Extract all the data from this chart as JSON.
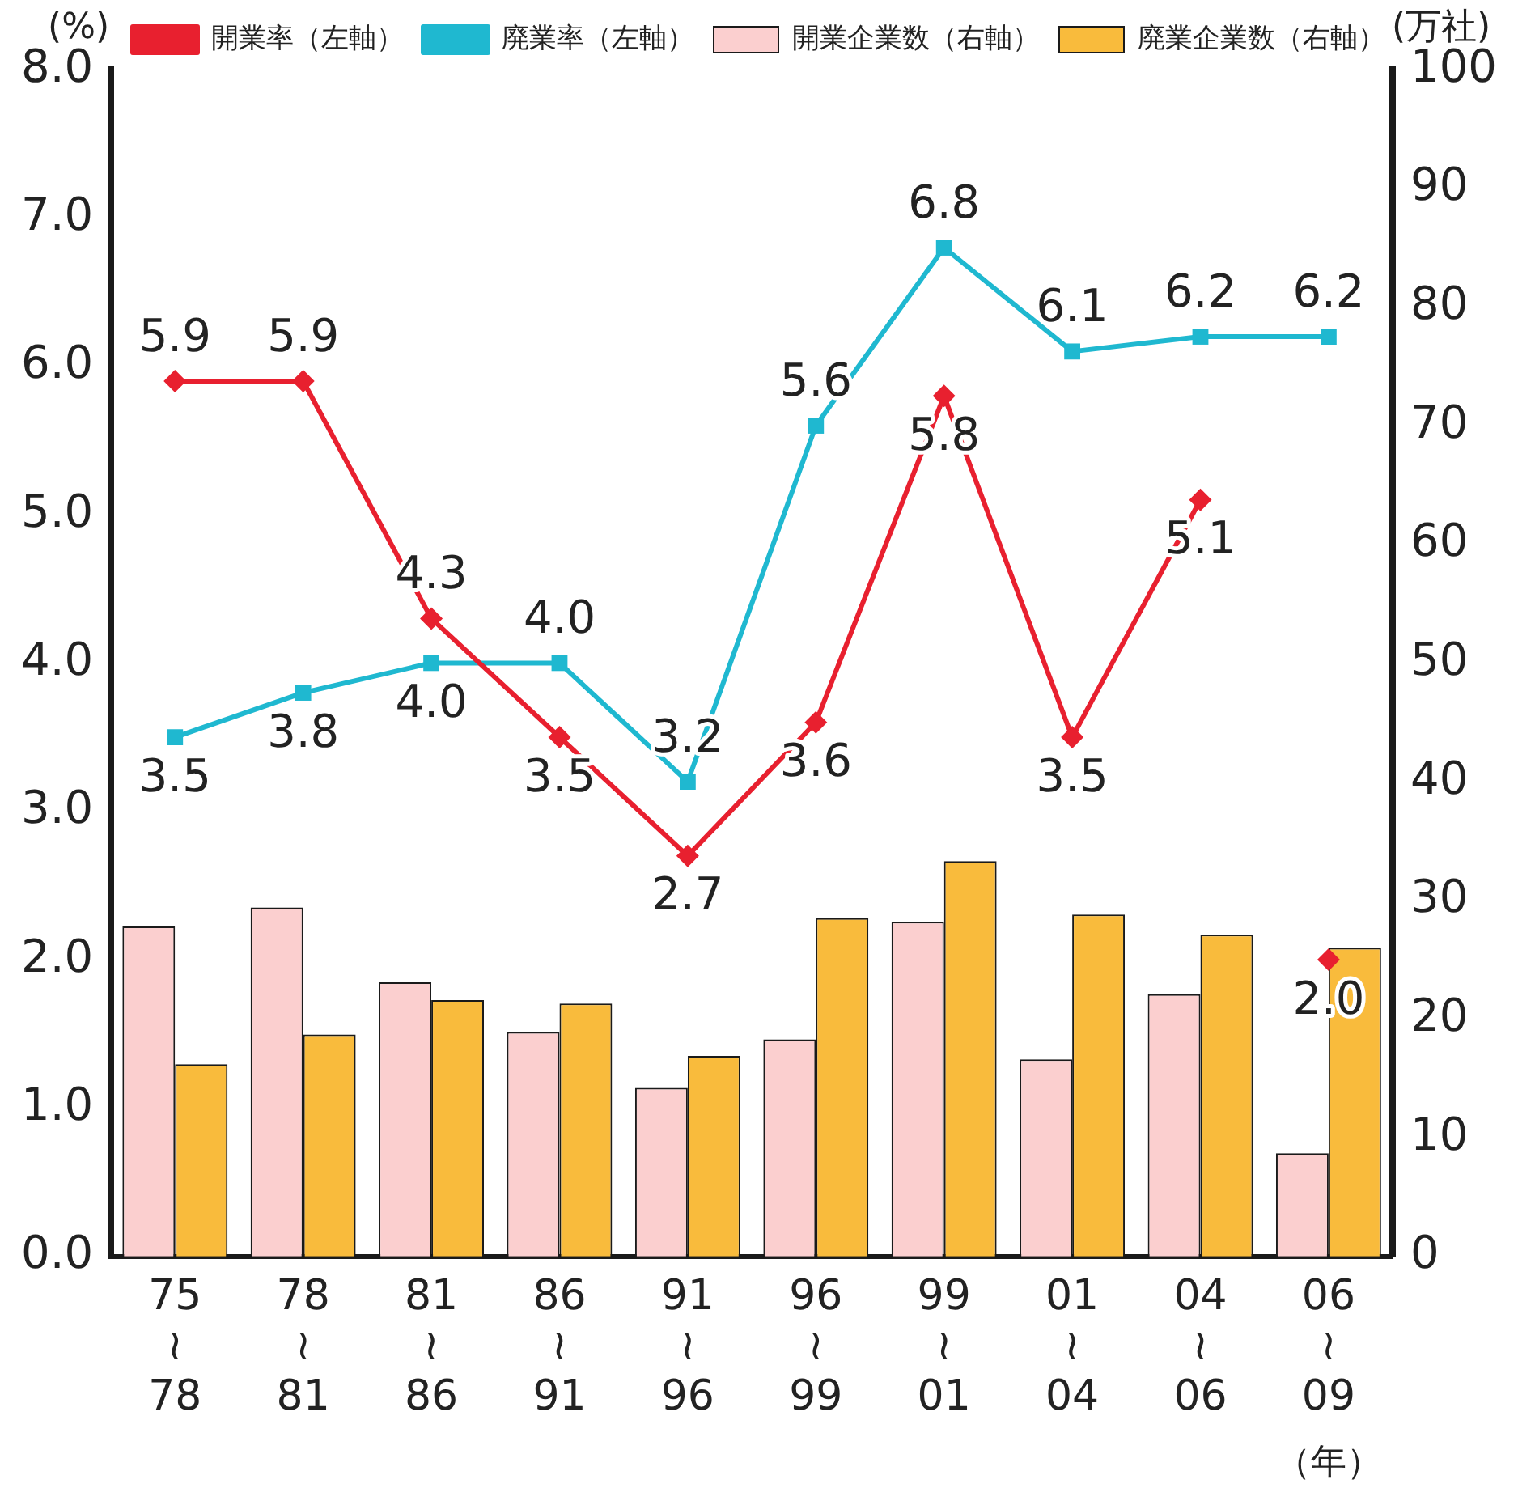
{
  "chart_data": {
    "type": "bar",
    "categories": [
      "75\n≀\n78",
      "78\n≀\n81",
      "81\n≀\n86",
      "86\n≀\n91",
      "91\n≀\n96",
      "96\n≀\n99",
      "99\n≀\n01",
      "01\n≀\n04",
      "04\n≀\n06",
      "06\n≀\n09"
    ],
    "xlabel": "（年）",
    "ylabel": "(%)",
    "y2label": "(万社)",
    "ylim": [
      0,
      8
    ],
    "yticks": [
      {
        "value": 0,
        "label": "0.0"
      },
      {
        "value": 1,
        "label": "1.0"
      },
      {
        "value": 2,
        "label": "2.0"
      },
      {
        "value": 3,
        "label": "3.0"
      },
      {
        "value": 4,
        "label": "4.0"
      },
      {
        "value": 5,
        "label": "5.0"
      },
      {
        "value": 6,
        "label": "6.0"
      },
      {
        "value": 7,
        "label": "7.0"
      },
      {
        "value": 8,
        "label": "8.0"
      }
    ],
    "y2lim": [
      0,
      100
    ],
    "y2ticks": [
      0,
      10,
      20,
      30,
      40,
      50,
      60,
      70,
      80,
      90,
      100
    ],
    "legend": "top",
    "grid": false,
    "series": [
      {
        "name": "開業率（左軸）",
        "type": "line",
        "color": "#e8202f",
        "marker": "diamond",
        "values": [
          5.9,
          5.9,
          4.3,
          3.5,
          2.7,
          3.6,
          5.8,
          3.5,
          5.1,
          null
        ],
        "value_labels": [
          "5.9",
          "5.9",
          "4.3",
          "3.5",
          "2.7",
          "3.6",
          "5.8",
          "3.5",
          "5.1",
          null
        ]
      },
      {
        "type": "line",
        "color": "#e8202f",
        "marker": "diamond",
        "values": [
          null,
          null,
          null,
          null,
          null,
          null,
          null,
          null,
          null,
          2.0
        ],
        "value_labels": [
          null,
          null,
          null,
          null,
          null,
          null,
          null,
          null,
          null,
          "2.0"
        ]
      },
      {
        "name": "廃業率（左軸）",
        "type": "line",
        "color": "#1fb8d0",
        "marker": "square",
        "values": [
          3.5,
          3.8,
          4.0,
          4.0,
          3.2,
          5.6,
          6.8,
          6.1,
          6.2,
          6.2
        ],
        "value_labels": [
          "3.5",
          "3.8",
          "4.0",
          "4.0",
          "3.2",
          "5.6",
          "6.8",
          "6.1",
          "6.2",
          "6.2"
        ]
      },
      {
        "name": "開業企業数（右軸）",
        "axis": "y2",
        "color": "#fbcfcf",
        "values": [
          27.8,
          29.4,
          23.1,
          18.9,
          14.2,
          18.3,
          28.2,
          16.6,
          22.1,
          8.7
        ]
      },
      {
        "name": "廃業企業数（右軸）",
        "axis": "y2",
        "color": "#f9bb3c",
        "values": [
          16.2,
          18.7,
          21.6,
          21.3,
          16.9,
          28.5,
          33.3,
          28.8,
          27.1,
          26.0
        ]
      }
    ]
  }
}
